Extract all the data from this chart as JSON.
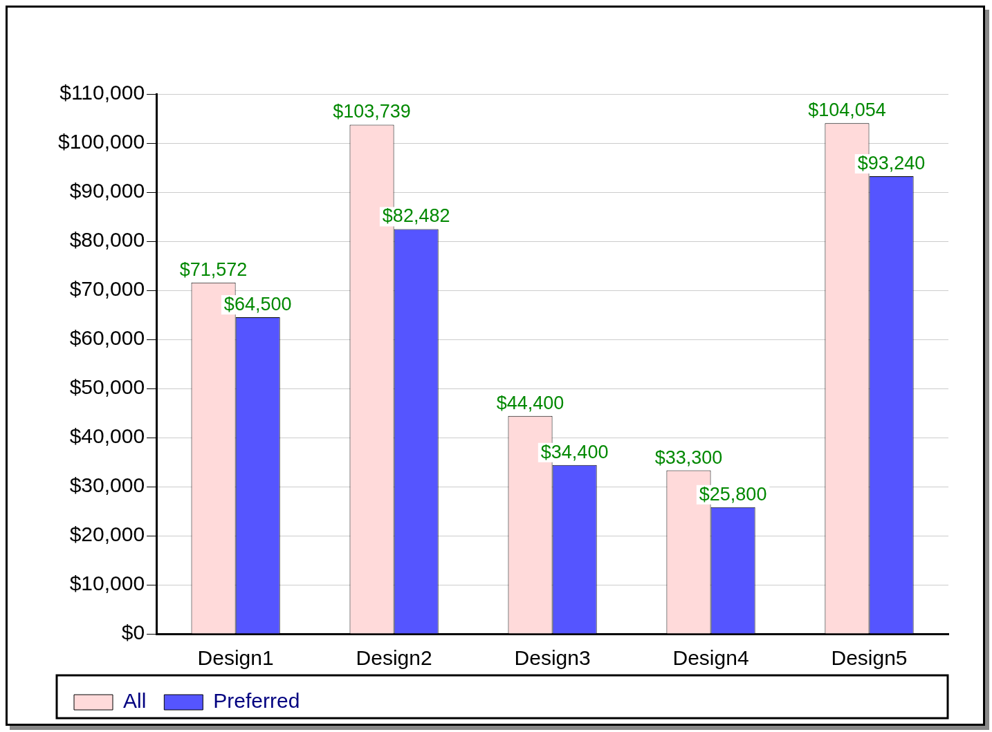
{
  "chart_data": {
    "type": "bar",
    "categories": [
      "Design1",
      "Design2",
      "Design3",
      "Design4",
      "Design5"
    ],
    "series": [
      {
        "name": "All",
        "color": "#ffdada",
        "values": [
          71572,
          103739,
          44400,
          33300,
          104054
        ],
        "value_labels": [
          "$71,572",
          "$103,739",
          "$44,400",
          "$33,300",
          "$104,054"
        ]
      },
      {
        "name": "Preferred",
        "color": "#5555ff",
        "values": [
          64500,
          82482,
          34400,
          25800,
          93240
        ],
        "value_labels": [
          "$64,500",
          "$82,482",
          "$34,400",
          "$25,800",
          "$93,240"
        ]
      }
    ],
    "ylim": [
      0,
      110000
    ],
    "yticks": [
      {
        "value": 0,
        "label": "$0"
      },
      {
        "value": 10000,
        "label": "$10,000"
      },
      {
        "value": 20000,
        "label": "$20,000"
      },
      {
        "value": 30000,
        "label": "$30,000"
      },
      {
        "value": 40000,
        "label": "$40,000"
      },
      {
        "value": 50000,
        "label": "$50,000"
      },
      {
        "value": 60000,
        "label": "$60,000"
      },
      {
        "value": 70000,
        "label": "$70,000"
      },
      {
        "value": 80000,
        "label": "$80,000"
      },
      {
        "value": 90000,
        "label": "$90,000"
      },
      {
        "value": 100000,
        "label": "$100,000"
      },
      {
        "value": 110000,
        "label": "$110,000"
      }
    ],
    "grid": "y",
    "legend": "bottom left"
  }
}
